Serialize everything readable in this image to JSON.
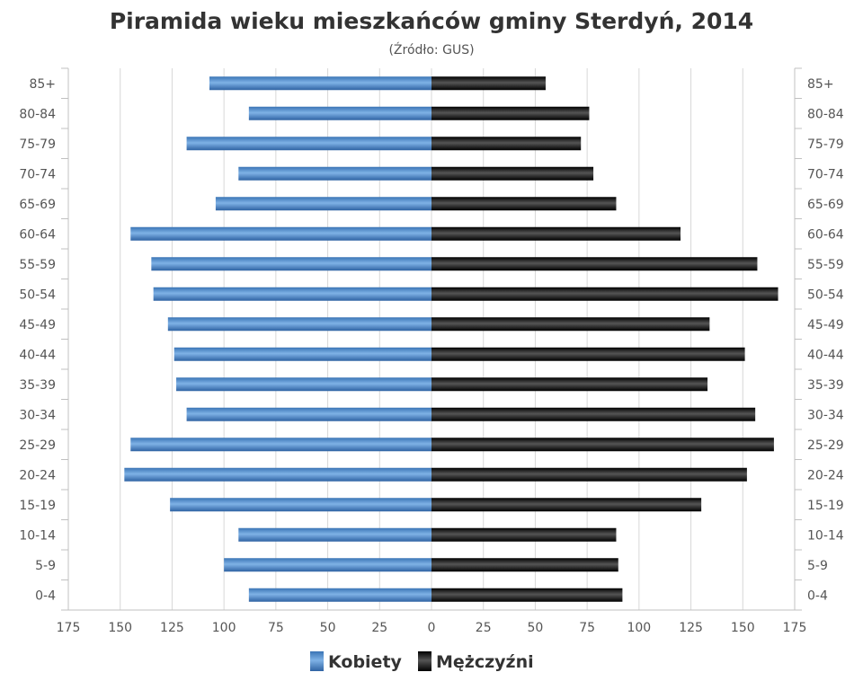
{
  "chart_data": {
    "type": "bar",
    "orientation": "horizontal-pyramid",
    "title": "Piramida wieku mieszkańców gminy Sterdyń, 2014",
    "subtitle": "(Źródło: GUS)",
    "categories": [
      "85+",
      "80-84",
      "75-79",
      "70-74",
      "65-69",
      "60-64",
      "55-59",
      "50-54",
      "45-49",
      "40-44",
      "35-39",
      "30-34",
      "25-29",
      "20-24",
      "15-19",
      "10-14",
      "5-9",
      "0-4"
    ],
    "series": [
      {
        "name": "Kobiety",
        "side": "left",
        "color": "#4f8fd0",
        "values": [
          107,
          88,
          118,
          93,
          104,
          145,
          135,
          134,
          127,
          124,
          123,
          118,
          145,
          148,
          126,
          93,
          100,
          88
        ]
      },
      {
        "name": "Mężczyźni",
        "side": "right",
        "color": "#222222",
        "values": [
          55,
          76,
          72,
          78,
          89,
          120,
          157,
          167,
          134,
          151,
          133,
          156,
          165,
          152,
          130,
          89,
          90,
          92
        ]
      }
    ],
    "xlim": [
      -175,
      175
    ],
    "xticks": [
      -175,
      -150,
      -125,
      -100,
      -75,
      -50,
      -25,
      0,
      25,
      50,
      75,
      100,
      125,
      150,
      175
    ],
    "xtick_labels": [
      "175",
      "150",
      "125",
      "100",
      "75",
      "50",
      "25",
      "0",
      "25",
      "50",
      "75",
      "100",
      "125",
      "150",
      "175"
    ],
    "grid": true,
    "legend_position": "bottom-center",
    "y_labels_both_sides": true
  }
}
